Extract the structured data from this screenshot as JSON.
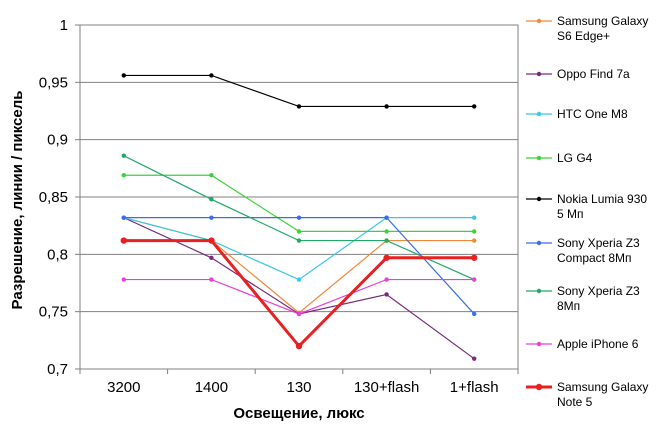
{
  "chart_data": {
    "type": "line",
    "categories": [
      "3200",
      "1400",
      "130",
      "130+flash",
      "1+flash"
    ],
    "xlabel": "Освещение,  люкс",
    "ylabel": "Разрешение,  линии / пиксель",
    "ylim": [
      0.7,
      1.0
    ],
    "yticks": [
      "0,7",
      "0,75",
      "0,8",
      "0,85",
      "0,9",
      "0,95",
      "1"
    ],
    "ytick_values": [
      0.7,
      0.75,
      0.8,
      0.85,
      0.9,
      0.95,
      1.0
    ],
    "grid": "horizontal",
    "legend_position": "right",
    "series": [
      {
        "name": [
          "Samsung Galaxy",
          "S6 Edge+"
        ],
        "color": "#f0883c",
        "values": [
          0.832,
          0.812,
          0.749,
          0.812,
          0.812
        ]
      },
      {
        "name": [
          "Oppo Find 7a"
        ],
        "color": "#7a2a7e",
        "values": [
          0.832,
          0.797,
          0.748,
          0.765,
          0.709
        ]
      },
      {
        "name": [
          "HTC One M8"
        ],
        "color": "#38c8e8",
        "values": [
          0.832,
          0.812,
          0.778,
          0.832,
          0.832
        ]
      },
      {
        "name": [
          "LG G4"
        ],
        "color": "#3ad43a",
        "values": [
          0.869,
          0.869,
          0.82,
          0.82,
          0.82
        ]
      },
      {
        "name": [
          "Nokia Lumia 930",
          "5 Мп"
        ],
        "color": "#000000",
        "values": [
          0.956,
          0.956,
          0.929,
          0.929,
          0.929
        ]
      },
      {
        "name": [
          "Sony Xperia Z3",
          "Compact 8Мп"
        ],
        "color": "#3a6ee8",
        "values": [
          0.832,
          0.832,
          0.832,
          0.832,
          0.748
        ]
      },
      {
        "name": [
          "Sony Xperia Z3",
          "8Мп"
        ],
        "color": "#22a868",
        "values": [
          0.886,
          0.848,
          0.812,
          0.812,
          0.778
        ]
      },
      {
        "name": [
          "Apple iPhone 6"
        ],
        "color": "#e840d8",
        "values": [
          0.778,
          0.778,
          0.748,
          0.778,
          0.778
        ]
      },
      {
        "name": [
          "Samsung Galaxy",
          "Note 5"
        ],
        "color": "#e82020",
        "bold": true,
        "values": [
          0.812,
          0.812,
          0.72,
          0.797,
          0.797
        ]
      }
    ]
  }
}
